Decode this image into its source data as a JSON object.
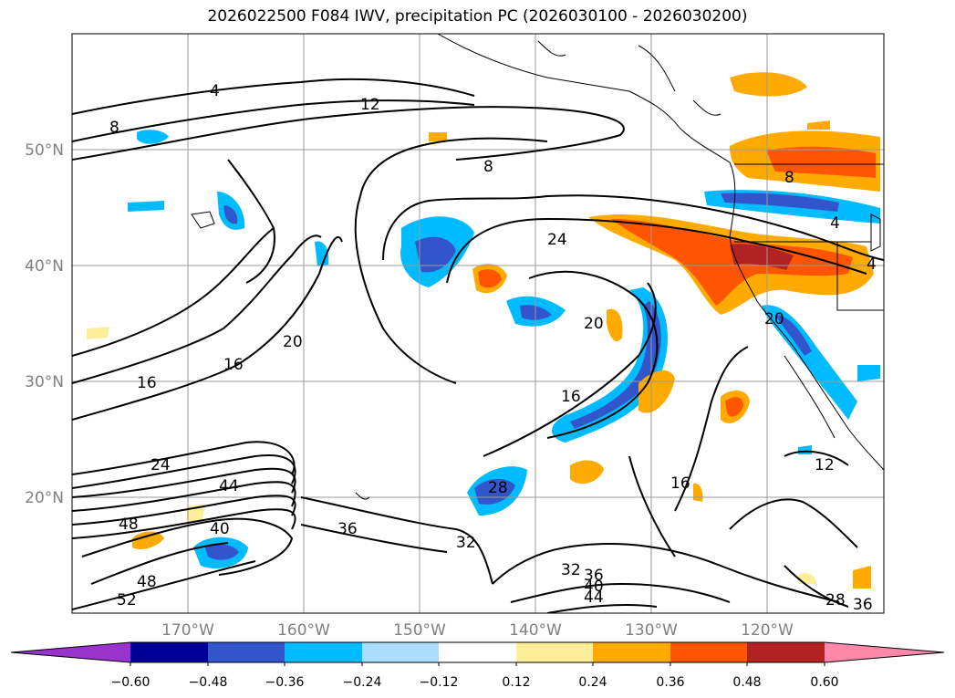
{
  "title": "2026022500 F084 IWV, precipitation PC (2026030100 - 2026030200)",
  "map": {
    "lon_labels": [
      "170°W",
      "160°W",
      "150°W",
      "140°W",
      "130°W",
      "120°W"
    ],
    "lat_labels": [
      "50°N",
      "40°N",
      "30°N",
      "20°N"
    ],
    "contour_labels": [
      "4",
      "12",
      "8",
      "8",
      "8",
      "4",
      "4",
      "24",
      "20",
      "20",
      "16",
      "16",
      "20",
      "16",
      "24",
      "44",
      "48",
      "40",
      "36",
      "28",
      "32",
      "48",
      "52",
      "16",
      "12",
      "32",
      "36",
      "40",
      "44",
      "28",
      "36"
    ]
  },
  "colorbar": {
    "ticks": [
      "−0.60",
      "−0.48",
      "−0.36",
      "−0.24",
      "−0.12",
      "0.12",
      "0.24",
      "0.36",
      "0.48",
      "0.60"
    ],
    "colors": [
      "#9933cc",
      "#000099",
      "#3355cc",
      "#00bbff",
      "#aaddff",
      "#ffffff",
      "#ffee99",
      "#ffaa00",
      "#ff5500",
      "#b22222",
      "#ff88aa"
    ]
  }
}
